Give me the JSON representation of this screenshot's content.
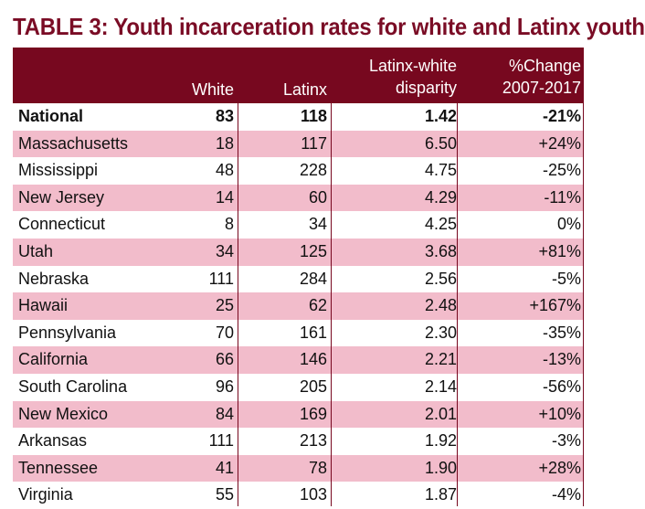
{
  "title": "TABLE 3: Youth incarceration rates for white and Latinx youth",
  "columns": {
    "white": "White",
    "latinx": "Latinx",
    "disparity_line1": "Latinx-white",
    "disparity_line2": "disparity",
    "change_line1": "%Change",
    "change_line2": "2007-2017"
  },
  "rows": [
    {
      "name": "National",
      "white": "83",
      "latinx": "118",
      "disparity": "1.42",
      "change": "-21%"
    },
    {
      "name": "Massachusetts",
      "white": "18",
      "latinx": "117",
      "disparity": "6.50",
      "change": "+24%"
    },
    {
      "name": "Mississippi",
      "white": "48",
      "latinx": "228",
      "disparity": "4.75",
      "change": "-25%"
    },
    {
      "name": "New Jersey",
      "white": "14",
      "latinx": "60",
      "disparity": "4.29",
      "change": "-11%"
    },
    {
      "name": "Connecticut",
      "white": "8",
      "latinx": "34",
      "disparity": "4.25",
      "change": "0%"
    },
    {
      "name": "Utah",
      "white": "34",
      "latinx": "125",
      "disparity": "3.68",
      "change": "+81%"
    },
    {
      "name": "Nebraska",
      "white": "111",
      "latinx": "284",
      "disparity": "2.56",
      "change": "-5%"
    },
    {
      "name": "Hawaii",
      "white": "25",
      "latinx": "62",
      "disparity": "2.48",
      "change": "+167%"
    },
    {
      "name": "Pennsylvania",
      "white": "70",
      "latinx": "161",
      "disparity": "2.30",
      "change": "-35%"
    },
    {
      "name": "California",
      "white": "66",
      "latinx": "146",
      "disparity": "2.21",
      "change": "-13%"
    },
    {
      "name": "South Carolina",
      "white": "96",
      "latinx": "205",
      "disparity": "2.14",
      "change": "-56%"
    },
    {
      "name": "New Mexico",
      "white": "84",
      "latinx": "169",
      "disparity": "2.01",
      "change": "+10%"
    },
    {
      "name": "Arkansas",
      "white": "111",
      "latinx": "213",
      "disparity": "1.92",
      "change": "-3%"
    },
    {
      "name": "Tennessee",
      "white": "41",
      "latinx": "78",
      "disparity": "1.90",
      "change": "+28%"
    },
    {
      "name": "Virginia",
      "white": "55",
      "latinx": "103",
      "disparity": "1.87",
      "change": "-4%"
    }
  ],
  "colors": {
    "header_bg": "#77081f",
    "title": "#7a0c25",
    "stripe": "#f2bccb"
  }
}
